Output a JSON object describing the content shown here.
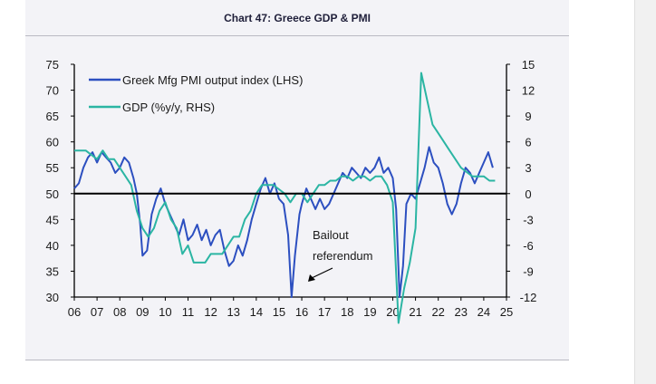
{
  "chart_data": {
    "type": "line",
    "title": "Chart 47: Greece GDP & PMI",
    "x_tick_labels": [
      "06",
      "07",
      "08",
      "09",
      "10",
      "11",
      "12",
      "13",
      "14",
      "15",
      "16",
      "17",
      "18",
      "19",
      "20",
      "21",
      "22",
      "23",
      "24",
      "25"
    ],
    "xlim": [
      2006,
      2025
    ],
    "y_left": {
      "ylim": [
        30,
        75
      ],
      "ticks": [
        75,
        70,
        65,
        60,
        55,
        50,
        45,
        40,
        35,
        30
      ]
    },
    "y_right": {
      "ylim": [
        -12,
        15
      ],
      "ticks": [
        "15",
        "12",
        "9",
        "6",
        "3",
        "0",
        "-3",
        "-6",
        "-9",
        "-12"
      ]
    },
    "reference_line": {
      "axis": "left",
      "value": 50
    },
    "legend_position": "top-left",
    "annotation": {
      "lines": [
        "Bailout",
        "referendum"
      ],
      "points_to": [
        2015.6,
        30
      ]
    },
    "series": [
      {
        "name": "Greek Mfg PMI output index (LHS)",
        "axis": "left",
        "color": "#2c4fc0",
        "points": [
          [
            2006.0,
            51
          ],
          [
            2006.2,
            52
          ],
          [
            2006.4,
            55
          ],
          [
            2006.6,
            57
          ],
          [
            2006.8,
            58
          ],
          [
            2007.0,
            56
          ],
          [
            2007.2,
            58
          ],
          [
            2007.4,
            57
          ],
          [
            2007.6,
            56
          ],
          [
            2007.8,
            54
          ],
          [
            2008.0,
            55
          ],
          [
            2008.2,
            57
          ],
          [
            2008.4,
            56
          ],
          [
            2008.6,
            53
          ],
          [
            2008.75,
            50
          ],
          [
            2008.9,
            44
          ],
          [
            2009.0,
            38
          ],
          [
            2009.2,
            39
          ],
          [
            2009.4,
            46
          ],
          [
            2009.6,
            49
          ],
          [
            2009.8,
            51
          ],
          [
            2010.0,
            48
          ],
          [
            2010.2,
            46
          ],
          [
            2010.4,
            44
          ],
          [
            2010.6,
            42
          ],
          [
            2010.8,
            45
          ],
          [
            2011.0,
            41
          ],
          [
            2011.2,
            42
          ],
          [
            2011.4,
            44
          ],
          [
            2011.6,
            41
          ],
          [
            2011.8,
            43
          ],
          [
            2012.0,
            40
          ],
          [
            2012.2,
            42
          ],
          [
            2012.4,
            43
          ],
          [
            2012.6,
            39
          ],
          [
            2012.8,
            36
          ],
          [
            2013.0,
            37
          ],
          [
            2013.2,
            40
          ],
          [
            2013.4,
            38
          ],
          [
            2013.6,
            41
          ],
          [
            2013.8,
            45
          ],
          [
            2014.0,
            48
          ],
          [
            2014.2,
            51
          ],
          [
            2014.4,
            53
          ],
          [
            2014.6,
            50
          ],
          [
            2014.8,
            52
          ],
          [
            2015.0,
            49
          ],
          [
            2015.2,
            48
          ],
          [
            2015.4,
            42
          ],
          [
            2015.55,
            30
          ],
          [
            2015.7,
            38
          ],
          [
            2015.9,
            46
          ],
          [
            2016.0,
            48
          ],
          [
            2016.2,
            51
          ],
          [
            2016.4,
            49
          ],
          [
            2016.6,
            47
          ],
          [
            2016.8,
            49
          ],
          [
            2017.0,
            47
          ],
          [
            2017.2,
            48
          ],
          [
            2017.4,
            50
          ],
          [
            2017.6,
            52
          ],
          [
            2017.8,
            54
          ],
          [
            2018.0,
            53
          ],
          [
            2018.2,
            55
          ],
          [
            2018.4,
            54
          ],
          [
            2018.6,
            53
          ],
          [
            2018.8,
            55
          ],
          [
            2019.0,
            54
          ],
          [
            2019.2,
            55
          ],
          [
            2019.4,
            57
          ],
          [
            2019.6,
            54
          ],
          [
            2019.8,
            55
          ],
          [
            2020.0,
            53
          ],
          [
            2020.15,
            47
          ],
          [
            2020.3,
            30
          ],
          [
            2020.45,
            36
          ],
          [
            2020.6,
            48
          ],
          [
            2020.8,
            50
          ],
          [
            2021.0,
            49
          ],
          [
            2021.2,
            52
          ],
          [
            2021.4,
            55
          ],
          [
            2021.6,
            59
          ],
          [
            2021.8,
            56
          ],
          [
            2022.0,
            55
          ],
          [
            2022.2,
            52
          ],
          [
            2022.4,
            48
          ],
          [
            2022.6,
            46
          ],
          [
            2022.8,
            48
          ],
          [
            2023.0,
            52
          ],
          [
            2023.2,
            55
          ],
          [
            2023.4,
            54
          ],
          [
            2023.6,
            52
          ],
          [
            2023.8,
            54
          ],
          [
            2024.0,
            56
          ],
          [
            2024.2,
            58
          ],
          [
            2024.4,
            55
          ]
        ]
      },
      {
        "name": "GDP (%y/y, RHS)",
        "axis": "right",
        "color": "#2bb5a3",
        "points": [
          [
            2006.0,
            5
          ],
          [
            2006.25,
            5
          ],
          [
            2006.5,
            5
          ],
          [
            2006.75,
            4.5
          ],
          [
            2007.0,
            4
          ],
          [
            2007.25,
            5
          ],
          [
            2007.5,
            4
          ],
          [
            2007.75,
            4
          ],
          [
            2008.0,
            3
          ],
          [
            2008.25,
            2
          ],
          [
            2008.5,
            1
          ],
          [
            2008.75,
            -2
          ],
          [
            2009.0,
            -4
          ],
          [
            2009.25,
            -5
          ],
          [
            2009.5,
            -4
          ],
          [
            2009.75,
            -2
          ],
          [
            2010.0,
            -1
          ],
          [
            2010.25,
            -3
          ],
          [
            2010.5,
            -4
          ],
          [
            2010.75,
            -7
          ],
          [
            2011.0,
            -6
          ],
          [
            2011.25,
            -8
          ],
          [
            2011.5,
            -8
          ],
          [
            2011.75,
            -8
          ],
          [
            2012.0,
            -7
          ],
          [
            2012.25,
            -7
          ],
          [
            2012.5,
            -7
          ],
          [
            2012.75,
            -6
          ],
          [
            2013.0,
            -5
          ],
          [
            2013.25,
            -5
          ],
          [
            2013.5,
            -3
          ],
          [
            2013.75,
            -2
          ],
          [
            2014.0,
            0
          ],
          [
            2014.25,
            1
          ],
          [
            2014.5,
            1
          ],
          [
            2014.75,
            1
          ],
          [
            2015.0,
            0.5
          ],
          [
            2015.25,
            0
          ],
          [
            2015.5,
            -1
          ],
          [
            2015.75,
            0
          ],
          [
            2016.0,
            0
          ],
          [
            2016.25,
            -1
          ],
          [
            2016.5,
            0
          ],
          [
            2016.75,
            1
          ],
          [
            2017.0,
            1
          ],
          [
            2017.25,
            1.5
          ],
          [
            2017.5,
            1.5
          ],
          [
            2017.75,
            2
          ],
          [
            2018.0,
            2
          ],
          [
            2018.25,
            1.5
          ],
          [
            2018.5,
            2
          ],
          [
            2018.75,
            2
          ],
          [
            2019.0,
            1.5
          ],
          [
            2019.25,
            2
          ],
          [
            2019.5,
            2
          ],
          [
            2019.75,
            1
          ],
          [
            2020.0,
            -1
          ],
          [
            2020.25,
            -15
          ],
          [
            2020.5,
            -11
          ],
          [
            2020.75,
            -8
          ],
          [
            2021.0,
            -4
          ],
          [
            2021.25,
            14
          ],
          [
            2021.5,
            11
          ],
          [
            2021.75,
            8
          ],
          [
            2022.0,
            7
          ],
          [
            2022.25,
            6
          ],
          [
            2022.5,
            5
          ],
          [
            2022.75,
            4
          ],
          [
            2023.0,
            3
          ],
          [
            2023.25,
            2.5
          ],
          [
            2023.5,
            2
          ],
          [
            2023.75,
            2
          ],
          [
            2024.0,
            2
          ],
          [
            2024.25,
            1.5
          ],
          [
            2024.5,
            1.5
          ]
        ]
      }
    ]
  }
}
